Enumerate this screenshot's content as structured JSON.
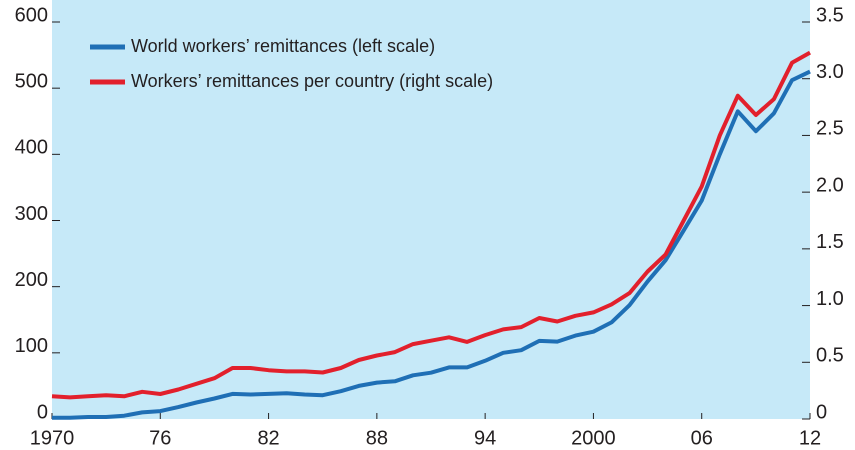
{
  "chart_data": {
    "type": "line",
    "x": [
      1970,
      1971,
      1972,
      1973,
      1974,
      1975,
      1976,
      1977,
      1978,
      1979,
      1980,
      1981,
      1982,
      1983,
      1984,
      1985,
      1986,
      1987,
      1988,
      1989,
      1990,
      1991,
      1992,
      1993,
      1994,
      1995,
      1996,
      1997,
      1998,
      1999,
      2000,
      2001,
      2002,
      2003,
      2004,
      2005,
      2006,
      2007,
      2008,
      2009,
      2010,
      2011,
      2012
    ],
    "series": [
      {
        "name": "World workers’ remittances (left scale)",
        "color": "#1f6fb5",
        "values": [
          2,
          2,
          3,
          3,
          5,
          10,
          12,
          18,
          25,
          31,
          38,
          37,
          38,
          39,
          37,
          36,
          42,
          50,
          55,
          57,
          66,
          70,
          78,
          78,
          88,
          100,
          104,
          118,
          117,
          126,
          132,
          146,
          172,
          208,
          240,
          285,
          330,
          400,
          465,
          435,
          462,
          512,
          525
        ]
      },
      {
        "name": "Workers’ remittances per country (right scale)",
        "color": "#e2202c",
        "axis": "y2",
        "values": [
          0.2,
          0.19,
          0.2,
          0.21,
          0.2,
          0.24,
          0.22,
          0.26,
          0.31,
          0.36,
          0.45,
          0.45,
          0.43,
          0.42,
          0.42,
          0.41,
          0.45,
          0.52,
          0.56,
          0.59,
          0.66,
          0.69,
          0.72,
          0.68,
          0.74,
          0.79,
          0.81,
          0.89,
          0.86,
          0.91,
          0.94,
          1.01,
          1.11,
          1.3,
          1.45,
          1.75,
          2.05,
          2.5,
          2.85,
          2.68,
          2.82,
          3.14,
          3.23
        ]
      }
    ],
    "xlim": [
      1970,
      2012
    ],
    "xticks": [
      1970,
      {
        "value": 1976,
        "label": "76"
      },
      {
        "value": 1982,
        "label": "82"
      },
      {
        "value": 1988,
        "label": "88"
      },
      {
        "value": 1994,
        "label": "94"
      },
      2000,
      {
        "value": 2006,
        "label": "06"
      },
      {
        "value": 2012,
        "label": "12"
      }
    ],
    "ylim": [
      0,
      600
    ],
    "yticks": [
      0,
      100,
      200,
      300,
      400,
      500,
      600
    ],
    "y2lim": [
      0,
      3.5
    ],
    "y2ticks": [
      0,
      0.5,
      {
        "value": 1,
        "label": "1.0"
      },
      1.5,
      {
        "value": 2,
        "label": "2.0"
      },
      2.5,
      {
        "value": 3,
        "label": "3.0"
      },
      3.5
    ],
    "legend": "upper-left"
  }
}
